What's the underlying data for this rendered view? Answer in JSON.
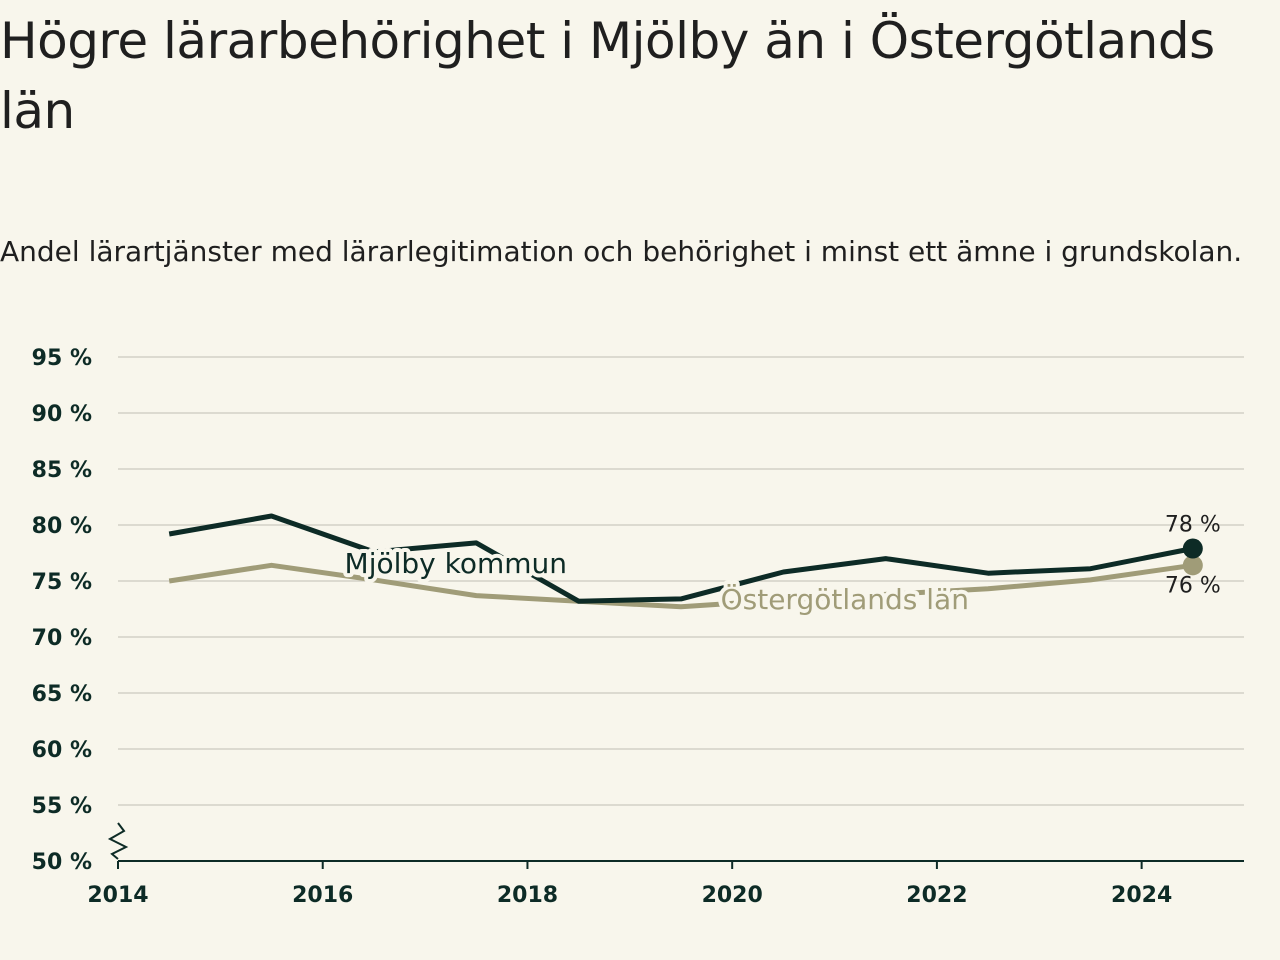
{
  "header": {
    "title": "Högre lärarbehörighet i Mjölby än i Östergötlands län",
    "subtitle": "Andel lärartjänster med lärarlegitimation och behörighet i minst ett ämne i grundskolan."
  },
  "chart_data": {
    "type": "line",
    "title": "Högre lärarbehörighet i Mjölby än i Östergötlands län",
    "subtitle": "Andel lärartjänster med lärarlegitimation och behörighet i minst ett ämne i grundskolan.",
    "xlabel": "",
    "ylabel": "",
    "x_ticks": [
      "2014",
      "2016",
      "2018",
      "2020",
      "2022",
      "2024"
    ],
    "xlim": [
      2014,
      2025
    ],
    "y_ticks": [
      "50 %",
      "55 %",
      "60 %",
      "65 %",
      "70 %",
      "75 %",
      "80 %",
      "85 %",
      "90 %",
      "95 %"
    ],
    "ylim": [
      50,
      95
    ],
    "y_axis_break": true,
    "grid": true,
    "x": [
      2014.5,
      2015.5,
      2016.5,
      2017.5,
      2018.5,
      2019.5,
      2020.5,
      2021.5,
      2022.5,
      2023.5,
      2024.5
    ],
    "series": [
      {
        "name": "Mjölby kommun",
        "color": "#0d2b26",
        "values": [
          79.2,
          80.8,
          77.6,
          78.4,
          73.2,
          73.4,
          75.8,
          77.0,
          75.7,
          76.1,
          77.9
        ],
        "end_label": "78 %"
      },
      {
        "name": "Östergötlands län",
        "color": "#a09c78",
        "values": [
          75.0,
          76.4,
          75.1,
          73.7,
          73.2,
          72.7,
          73.3,
          73.8,
          74.3,
          75.1,
          76.4
        ],
        "end_label": "76 %"
      }
    ]
  }
}
